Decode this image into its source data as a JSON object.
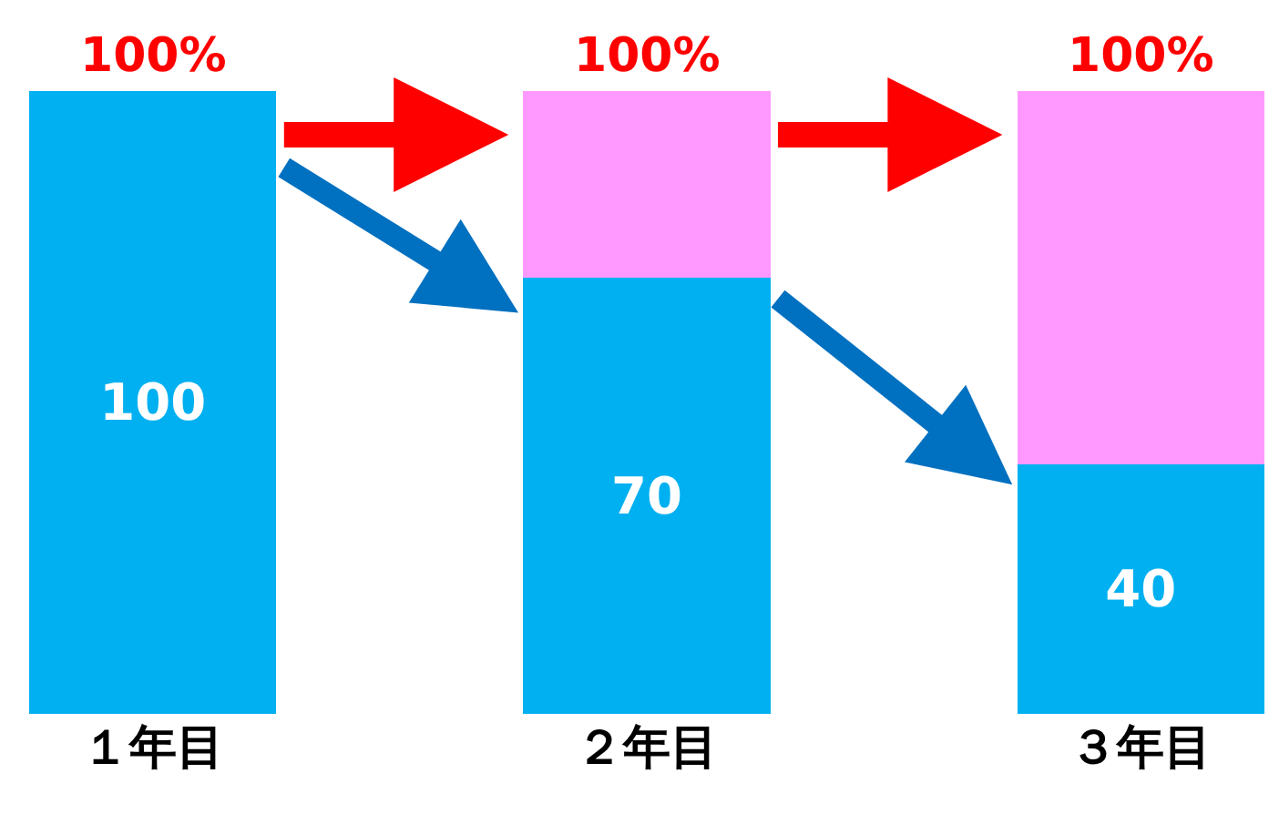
{
  "chart_data": {
    "type": "bar",
    "stacked": true,
    "categories": [
      "１年目",
      "２年目",
      "３年目"
    ],
    "series": [
      {
        "color": "#00b0f0",
        "values": [
          100,
          70,
          40
        ],
        "value_labels": [
          "100",
          "70",
          "40"
        ]
      },
      {
        "color": "#ff99ff",
        "values": [
          0,
          30,
          60
        ]
      }
    ],
    "totals": [
      "100%",
      "100%",
      "100%"
    ]
  }
}
